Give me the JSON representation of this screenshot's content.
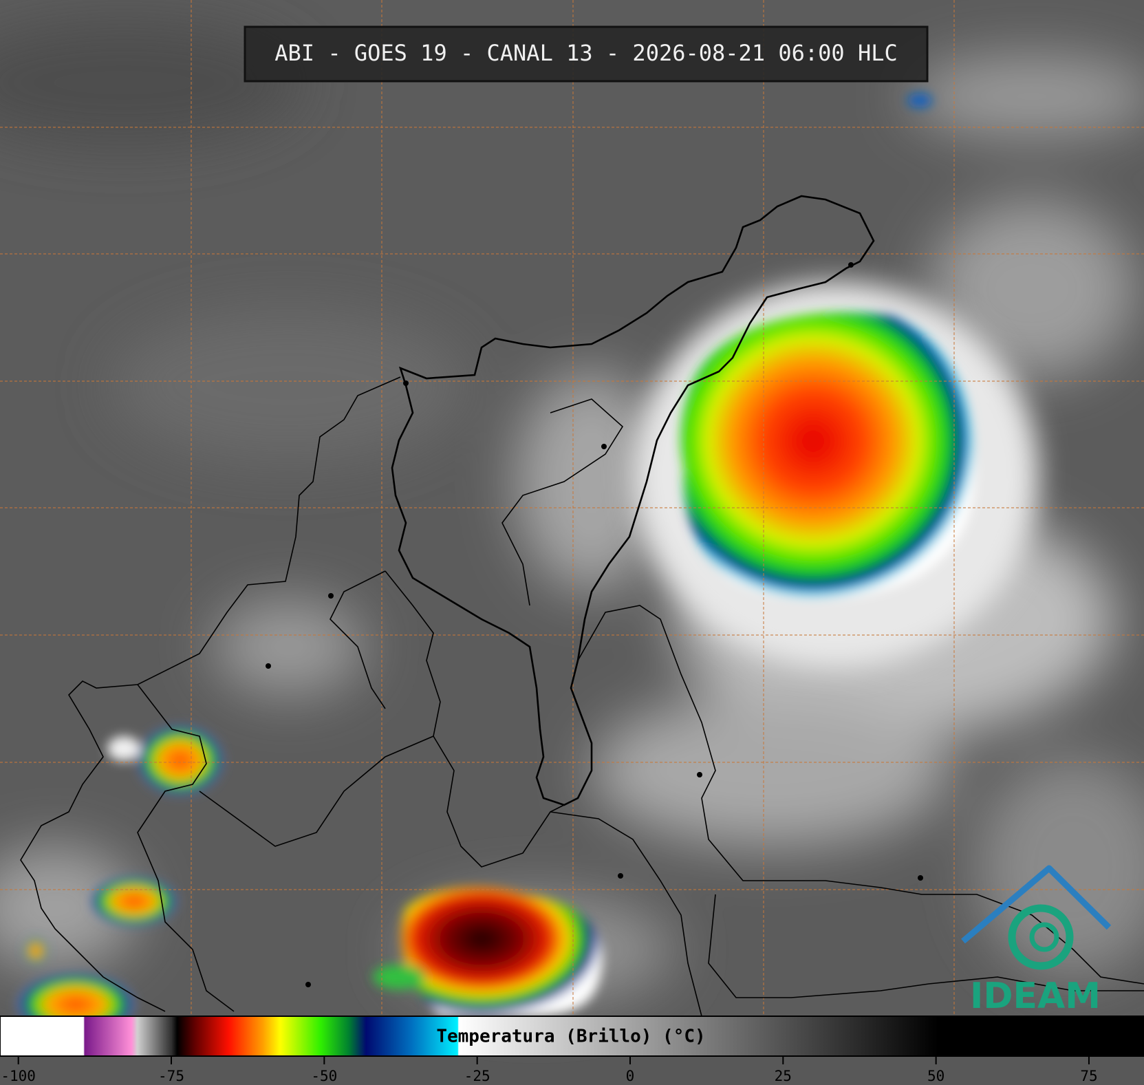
{
  "header": {
    "title": "ABI - GOES 19 - CANAL 13 - 2026-08-21 06:00 HLC"
  },
  "colorbar": {
    "label": "Temperatura (Brillo) (°C)",
    "lim": [
      -103,
      84
    ],
    "ticks": [
      -100,
      -75,
      -50,
      -25,
      0,
      25,
      50,
      75
    ]
  },
  "logo": {
    "text": "IDEAM"
  }
}
